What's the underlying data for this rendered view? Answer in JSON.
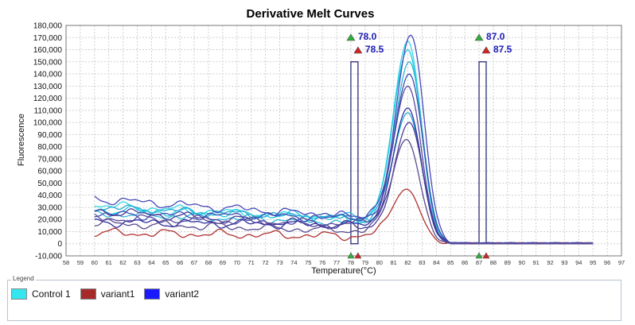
{
  "chart_data": {
    "type": "line",
    "title": "Derivative Melt Curves",
    "xlabel": "Temperature(°C)",
    "ylabel": "Fluorescence",
    "xlim": [
      58,
      97
    ],
    "ylim": [
      -10000,
      180000
    ],
    "x_ticks": [
      "58",
      "59",
      "60",
      "61",
      "62",
      "63",
      "64",
      "65",
      "66",
      "67",
      "68",
      "69",
      "70",
      "71",
      "72",
      "73",
      "74",
      "75",
      "76",
      "77",
      "78",
      "79",
      "80",
      "81",
      "82",
      "83",
      "84",
      "85",
      "86",
      "87",
      "88",
      "89",
      "90",
      "91",
      "92",
      "93",
      "94",
      "95",
      "96",
      "97"
    ],
    "y_ticks": [
      "-10,000",
      "0",
      "10,000",
      "20,000",
      "30,000",
      "40,000",
      "50,000",
      "60,000",
      "70,000",
      "80,000",
      "90,000",
      "100,000",
      "110,000",
      "120,000",
      "130,000",
      "140,000",
      "150,000",
      "160,000",
      "170,000",
      "180,000"
    ],
    "grid": true,
    "markers": [
      {
        "label": "78.0",
        "value": 78.0,
        "color": "green",
        "side": "start"
      },
      {
        "label": "78.5",
        "value": 78.5,
        "color": "red",
        "side": "start"
      },
      {
        "label": "87.0",
        "value": 87.0,
        "color": "green",
        "side": "end"
      },
      {
        "label": "87.5",
        "value": 87.5,
        "color": "red",
        "side": "end"
      }
    ],
    "regions": [
      {
        "x": [
          78.0,
          78.5
        ],
        "y": [
          0,
          150000
        ]
      },
      {
        "x": [
          87.0,
          87.5
        ],
        "y": [
          0,
          150000
        ]
      }
    ],
    "series": [
      {
        "name": "Control 1",
        "color": "#33d6e8",
        "peak_x": 82.0,
        "peak": 167000,
        "baseline_start": 32000,
        "baseline_end": 18000
      },
      {
        "name": "Control 1",
        "color": "#1ec8e0",
        "peak_x": 82.0,
        "peak": 160000,
        "baseline_start": 28000,
        "baseline_end": 21000
      },
      {
        "name": "Control 1",
        "color": "#2fb8d8",
        "peak_x": 82.1,
        "peak": 150000,
        "baseline_start": 25000,
        "baseline_end": 17000
      },
      {
        "name": "Control 1",
        "color": "#20a8d0",
        "peak_x": 82.0,
        "peak": 108000,
        "baseline_start": 30000,
        "baseline_end": 19000
      },
      {
        "name": "variant1",
        "color": "#b03030",
        "peak_x": 81.9,
        "peak": 45000,
        "baseline_start": 9000,
        "baseline_end": 6000
      },
      {
        "name": "variant2",
        "color": "#4848b8",
        "peak_x": 82.2,
        "peak": 172000,
        "baseline_start": 37000,
        "baseline_end": 20000
      },
      {
        "name": "variant2",
        "color": "#3a4fb0",
        "peak_x": 82.1,
        "peak": 140000,
        "baseline_start": 24000,
        "baseline_end": 22000
      },
      {
        "name": "variant2",
        "color": "#5a4aa0",
        "peak_x": 82.0,
        "peak": 130000,
        "baseline_start": 21000,
        "baseline_end": 16000
      },
      {
        "name": "variant2",
        "color": "#3030a0",
        "peak_x": 82.0,
        "peak": 112000,
        "baseline_start": 18000,
        "baseline_end": 15000
      },
      {
        "name": "variant2",
        "color": "#4a3a98",
        "peak_x": 82.1,
        "peak": 100000,
        "baseline_start": 27000,
        "baseline_end": 12000
      },
      {
        "name": "variant2",
        "color": "#5a4a90",
        "peak_x": 81.9,
        "peak": 86000,
        "baseline_start": 17000,
        "baseline_end": 10000
      }
    ],
    "legend": {
      "title": "Legend",
      "entries": [
        {
          "name": "Control 1",
          "color": "#33e6f0"
        },
        {
          "name": "variant1",
          "color": "#a52a2a"
        },
        {
          "name": "variant2",
          "color": "#1a1aff"
        }
      ]
    }
  }
}
